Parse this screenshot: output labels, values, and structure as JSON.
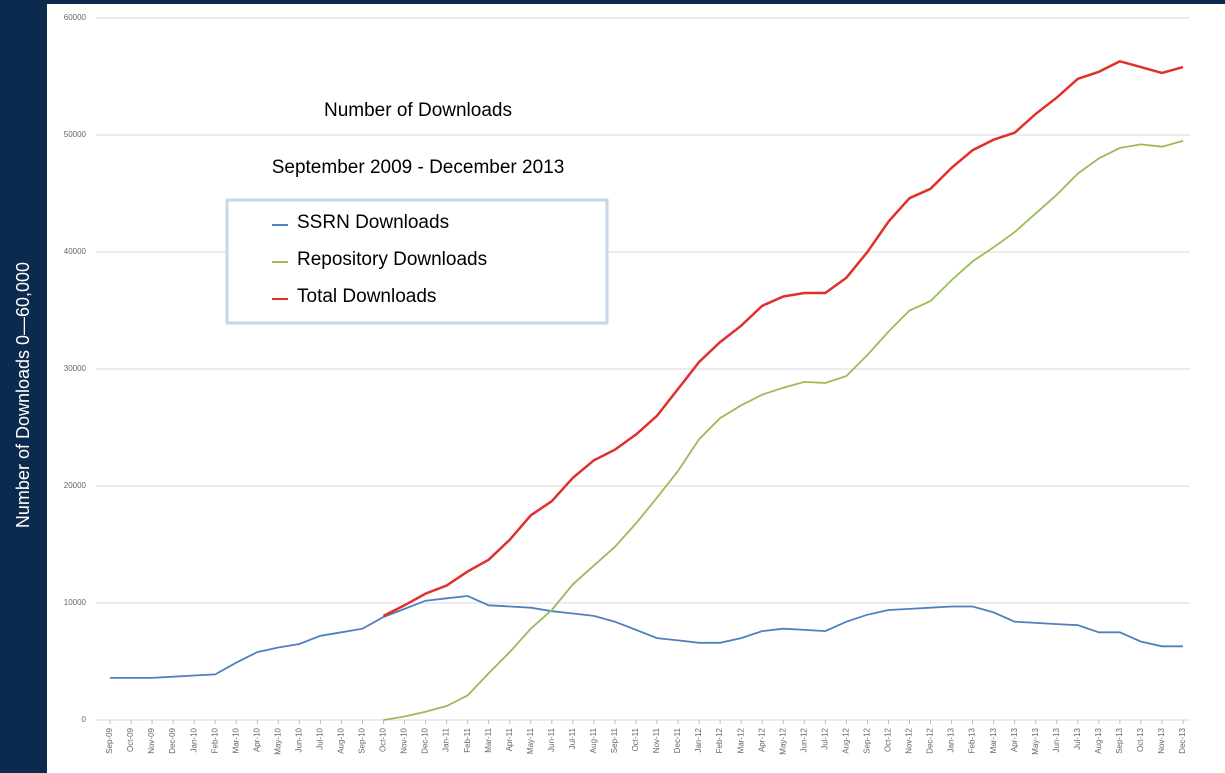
{
  "chart_data": {
    "type": "line",
    "title": "Number of Downloads",
    "subtitle": "September 2009 - December 2013",
    "ylabel": "Number of Downloads  0—60,000",
    "categories": [
      "Sep-09",
      "Oct-09",
      "Nov-09",
      "Dec-09",
      "Jan-10",
      "Feb-10",
      "Mar-10",
      "Apr-10",
      "May-10",
      "Jun-10",
      "Jul-10",
      "Aug-10",
      "Sep-10",
      "Oct-10",
      "Nov-10",
      "Dec-10",
      "Jan-11",
      "Feb-11",
      "Mar-11",
      "Apr-11",
      "May-11",
      "Jun-11",
      "Jul-11",
      "Aug-11",
      "Sep-11",
      "Oct-11",
      "Nov-11",
      "Dec-11",
      "Jan-12",
      "Feb-12",
      "Mar-12",
      "Apr-12",
      "May-12",
      "Jun-12",
      "Jul-12",
      "Aug-12",
      "Sep-12",
      "Oct-12",
      "Nov-12",
      "Dec-12",
      "Jan-13",
      "Feb-13",
      "Mar-13",
      "Apr-13",
      "May-13",
      "Jun-13",
      "Jul-13",
      "Aug-13",
      "Sep-13",
      "Oct-13",
      "Nov-13",
      "Dec-13"
    ],
    "series": [
      {
        "name": "SSRN Downloads",
        "color": "#4f81bd",
        "values": [
          3600,
          3600,
          3600,
          3700,
          3800,
          3900,
          4900,
          5800,
          6200,
          6500,
          7200,
          7500,
          7800,
          8800,
          9500,
          10200,
          10400,
          10600,
          9800,
          9700,
          9600,
          9300,
          9100,
          8900,
          8400,
          7700,
          7000,
          6800,
          6600,
          6600,
          7000,
          7600,
          7800,
          7700,
          7600,
          8400,
          9000,
          9400,
          9500,
          9600,
          9700,
          9700,
          9200,
          8400,
          8300,
          8200,
          8100,
          7500,
          7500,
          6700,
          6300,
          6300
        ]
      },
      {
        "name": "Repository Downloads",
        "color": "#9bbb59",
        "values": [
          null,
          null,
          null,
          null,
          null,
          null,
          null,
          null,
          null,
          null,
          null,
          null,
          null,
          0,
          300,
          700,
          1200,
          2100,
          4000,
          5800,
          7800,
          9400,
          11600,
          13200,
          14800,
          16800,
          19000,
          21300,
          24000,
          25800,
          26900,
          27800,
          28400,
          28900,
          28800,
          29400,
          31200,
          33200,
          35000,
          35800,
          37600,
          39200,
          40400,
          41700,
          43300,
          44900,
          46700,
          48000,
          48900,
          49200,
          49000,
          49500
        ]
      },
      {
        "name": "Total Downloads",
        "color": "#e0302a",
        "values": [
          null,
          null,
          null,
          null,
          null,
          null,
          null,
          null,
          null,
          null,
          null,
          null,
          null,
          8900,
          9800,
          10800,
          11500,
          12700,
          13700,
          15400,
          17500,
          18700,
          20700,
          22200,
          23100,
          24400,
          26000,
          28300,
          30600,
          32300,
          33700,
          35400,
          36200,
          36500,
          36500,
          37800,
          40000,
          42600,
          44600,
          45400,
          47200,
          48700,
          49600,
          50200,
          51800,
          53200,
          54800,
          55400,
          56300,
          55800,
          55300,
          55800
        ]
      }
    ],
    "ylim": [
      0,
      60000
    ],
    "yticks": [
      0,
      10000,
      20000,
      30000,
      40000,
      50000,
      60000
    ],
    "grid": true
  }
}
